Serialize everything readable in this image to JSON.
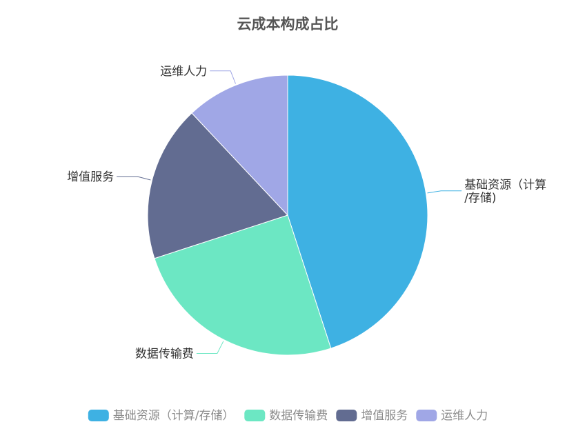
{
  "chart_data": {
    "type": "pie",
    "title": "云成本构成占比",
    "categories": [
      "基础资源（计算/存储）",
      "数据传输费",
      "增值服务",
      "运维人力"
    ],
    "values": [
      45,
      25,
      18,
      12
    ],
    "colors": [
      "#3eb1e3",
      "#6ce7c3",
      "#626c91",
      "#a0a7e6"
    ],
    "slice_labels": [
      [
        "基础资源（计算",
        "/存储)"
      ],
      [
        "数据传输费"
      ],
      [
        "增值服务"
      ],
      [
        "运维人力"
      ]
    ],
    "legend": {
      "position": "bottom",
      "items": [
        "基础资源（计算/存储）",
        "数据传输费",
        "增值服务",
        "运维人力"
      ]
    }
  }
}
